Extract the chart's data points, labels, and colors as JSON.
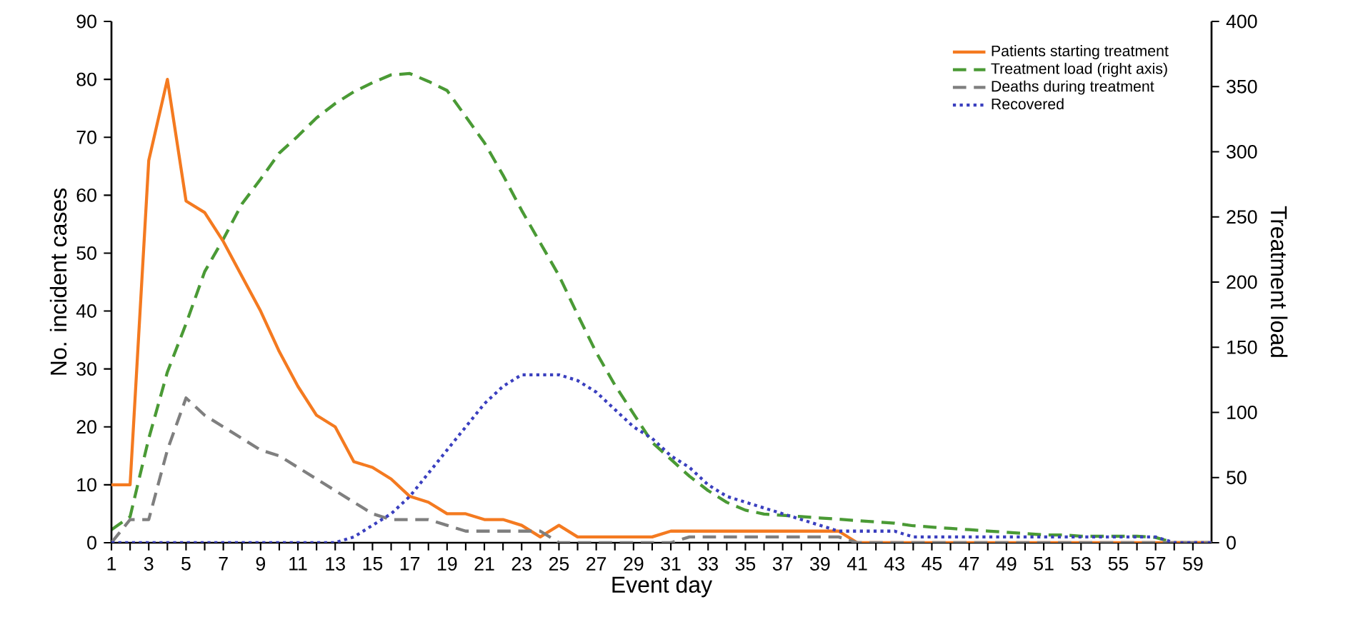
{
  "chart_data": {
    "type": "line",
    "xlabel": "Event day",
    "ylabel": "No. incident cases",
    "y2label": "Treatment load",
    "x": [
      1,
      2,
      3,
      4,
      5,
      6,
      7,
      8,
      9,
      10,
      11,
      12,
      13,
      14,
      15,
      16,
      17,
      18,
      19,
      20,
      21,
      22,
      23,
      24,
      25,
      26,
      27,
      28,
      29,
      30,
      31,
      32,
      33,
      34,
      35,
      36,
      37,
      38,
      39,
      40,
      41,
      42,
      43,
      44,
      45,
      46,
      47,
      48,
      49,
      50,
      51,
      52,
      53,
      54,
      55,
      56,
      57,
      58,
      59,
      60
    ],
    "xlim": [
      1,
      60
    ],
    "xticks": [
      1,
      3,
      5,
      7,
      9,
      11,
      13,
      15,
      17,
      19,
      21,
      23,
      25,
      27,
      29,
      31,
      33,
      35,
      37,
      39,
      41,
      43,
      45,
      47,
      49,
      51,
      53,
      55,
      57,
      59
    ],
    "ylim": [
      0,
      90
    ],
    "yticks": [
      0,
      10,
      20,
      30,
      40,
      50,
      60,
      70,
      80,
      90
    ],
    "y2lim": [
      0,
      400
    ],
    "y2ticks": [
      0,
      50,
      100,
      150,
      200,
      250,
      300,
      350,
      400
    ],
    "grid": false,
    "legend": "top right",
    "marker": "none",
    "series": [
      {
        "name": "Patients starting treatment",
        "color": "#f47a20",
        "line_style": "solid",
        "values": [
          10,
          10,
          66,
          80,
          59,
          57,
          52,
          46,
          40,
          33,
          27,
          22,
          20,
          14,
          13,
          11,
          8,
          7,
          5,
          5,
          4,
          4,
          3,
          1,
          3,
          1,
          1,
          1,
          1,
          1,
          2,
          2,
          2,
          2,
          2,
          2,
          2,
          2,
          2,
          2,
          0,
          0,
          0,
          0,
          0,
          0,
          0,
          0,
          0,
          0,
          0,
          0,
          0,
          0,
          0,
          0,
          0,
          0,
          0,
          0
        ]
      },
      {
        "name": "Treatment load (right axis)",
        "color": "#4a9a35",
        "line_style": "dashed",
        "axis": "y2",
        "values": [
          10,
          20,
          80,
          131,
          168,
          208,
          233,
          260,
          279,
          299,
          312,
          326,
          337,
          346,
          353,
          359,
          360,
          354,
          347,
          327,
          307,
          282,
          255,
          230,
          205,
          175,
          146,
          121,
          99,
          77,
          64,
          51,
          40,
          31,
          25,
          22,
          21,
          20,
          19,
          18,
          17,
          16,
          15,
          13,
          12,
          11,
          10,
          9,
          8,
          7,
          6,
          6,
          5,
          5,
          5,
          5,
          4,
          0,
          0,
          0
        ]
      },
      {
        "name": "Deaths during treatment",
        "color": "#7f7f7f",
        "line_style": "dashed",
        "values": [
          0,
          4,
          4,
          16,
          25,
          22,
          20,
          18,
          16,
          15,
          13,
          11,
          9,
          7,
          5,
          4,
          4,
          4,
          3,
          2,
          2,
          2,
          2,
          2,
          0,
          0,
          0,
          0,
          0,
          0,
          0,
          1,
          1,
          1,
          1,
          1,
          1,
          1,
          1,
          1,
          0,
          0,
          0,
          0,
          0,
          0,
          0,
          0,
          0,
          0,
          0,
          0,
          0,
          0,
          0,
          0,
          0,
          0,
          0,
          0
        ]
      },
      {
        "name": "Recovered",
        "color": "#3a3fbf",
        "line_style": "dotted",
        "values": [
          0,
          0,
          0,
          0,
          0,
          0,
          0,
          0,
          0,
          0,
          0,
          0,
          0,
          1,
          3,
          5,
          8,
          12,
          16,
          20,
          24,
          27,
          29,
          29,
          29,
          28,
          26,
          23,
          20,
          18,
          15,
          13,
          10,
          8,
          7,
          6,
          5,
          4,
          3,
          2,
          2,
          2,
          2,
          1,
          1,
          1,
          1,
          1,
          1,
          1,
          1,
          1,
          1,
          1,
          1,
          1,
          1,
          0,
          0,
          0
        ]
      }
    ]
  }
}
